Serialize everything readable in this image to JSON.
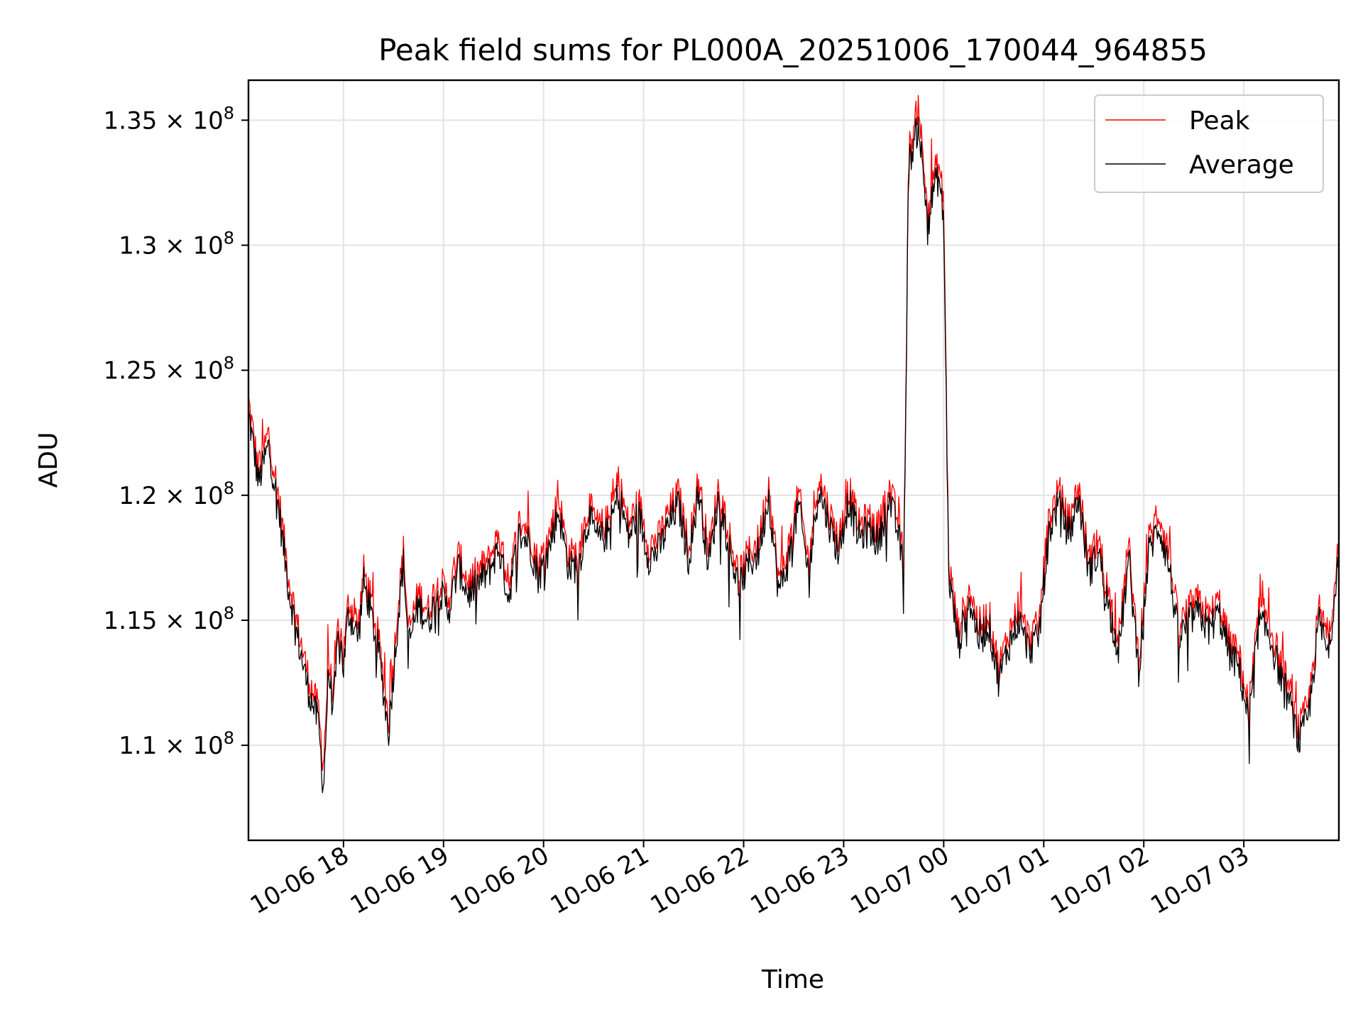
{
  "chart_data": {
    "type": "line",
    "title": "Peak field sums for PL000A_20251006_170044_964855",
    "xlabel": "Time",
    "ylabel": "ADU",
    "grid": true,
    "legend_position": "top-right",
    "xlim": [
      "2025-10-06 17:03",
      "2025-10-07 03:57"
    ],
    "ylim": [
      106200000,
      136600000
    ],
    "x_tick_labels": [
      "10-06 18",
      "10-06 19",
      "10-06 20",
      "10-06 21",
      "10-06 22",
      "10-06 23",
      "10-07 00",
      "10-07 01",
      "10-07 02",
      "10-07 03"
    ],
    "x_tick_hours": [
      0.95,
      1.95,
      2.95,
      3.95,
      4.95,
      5.95,
      6.95,
      7.95,
      8.95,
      9.95
    ],
    "y_ticks": [
      {
        "value": 110000000,
        "mantissa": "1.1"
      },
      {
        "value": 115000000,
        "mantissa": "1.15"
      },
      {
        "value": 120000000,
        "mantissa": "1.2"
      },
      {
        "value": 125000000,
        "mantissa": "1.25"
      },
      {
        "value": 130000000,
        "mantissa": "1.3"
      },
      {
        "value": 135000000,
        "mantissa": "1.35"
      }
    ],
    "y_tick_suffix": "× 10",
    "y_tick_exponent": "8",
    "x_unit": "hours since 2025-10-06 17:03",
    "series": [
      {
        "name": "Peak",
        "color": "#ff0000",
        "x": [
          0,
          0.1,
          0.2,
          0.3,
          0.4,
          0.5,
          0.6,
          0.7,
          0.75,
          0.8,
          0.85,
          0.9,
          0.95,
          1.0,
          1.1,
          1.15,
          1.2,
          1.3,
          1.4,
          1.5,
          1.55,
          1.6,
          1.7,
          1.8,
          1.9,
          2.0,
          2.1,
          2.2,
          2.3,
          2.4,
          2.5,
          2.6,
          2.7,
          2.8,
          2.9,
          3.0,
          3.1,
          3.2,
          3.3,
          3.4,
          3.5,
          3.6,
          3.7,
          3.8,
          3.9,
          4.0,
          4.1,
          4.2,
          4.3,
          4.4,
          4.5,
          4.6,
          4.7,
          4.8,
          4.9,
          5.0,
          5.1,
          5.2,
          5.3,
          5.4,
          5.5,
          5.6,
          5.7,
          5.8,
          5.9,
          6.0,
          6.1,
          6.2,
          6.3,
          6.4,
          6.5,
          6.55,
          6.6,
          6.65,
          6.7,
          6.75,
          6.8,
          6.85,
          6.9,
          6.95,
          7.0,
          7.1,
          7.2,
          7.3,
          7.4,
          7.5,
          7.6,
          7.7,
          7.8,
          7.9,
          8.0,
          8.1,
          8.2,
          8.3,
          8.4,
          8.5,
          8.6,
          8.7,
          8.8,
          8.9,
          9.0,
          9.1,
          9.2,
          9.3,
          9.4,
          9.5,
          9.6,
          9.7,
          9.8,
          9.9,
          10.0,
          10.1,
          10.2,
          10.3,
          10.4,
          10.5,
          10.6,
          10.7,
          10.8,
          10.9
        ],
        "values": [
          123800000,
          121000000,
          122500000,
          120000000,
          116800000,
          114600000,
          112700000,
          111400000,
          109200000,
          113500000,
          111800000,
          115200000,
          113600000,
          115800000,
          114800000,
          117000000,
          116200000,
          114300000,
          111000000,
          115800000,
          117800000,
          114500000,
          116100000,
          115400000,
          116700000,
          115900000,
          117600000,
          116500000,
          117000000,
          117400000,
          118400000,
          116400000,
          118900000,
          118700000,
          117200000,
          118300000,
          119900000,
          117600000,
          117700000,
          119600000,
          118700000,
          119000000,
          120600000,
          118800000,
          119800000,
          118000000,
          118300000,
          119300000,
          120100000,
          117900000,
          120700000,
          117700000,
          120400000,
          118600000,
          116800000,
          117700000,
          118200000,
          120500000,
          116600000,
          117900000,
          120100000,
          117300000,
          120800000,
          119400000,
          118200000,
          120300000,
          118800000,
          119100000,
          118600000,
          120400000,
          118900000,
          117400000,
          133800000,
          134500000,
          135800000,
          133000000,
          131500000,
          132800000,
          133200000,
          131800000,
          117300000,
          114500000,
          116400000,
          114800000,
          115300000,
          113100000,
          114500000,
          115500000,
          114300000,
          114800000,
          119000000,
          120200000,
          118900000,
          120400000,
          117400000,
          118200000,
          116000000,
          114300000,
          117900000,
          113500000,
          118200000,
          119300000,
          117700000,
          114700000,
          115500000,
          115800000,
          115100000,
          115800000,
          114200000,
          113600000,
          111500000,
          115400000,
          115000000,
          113500000,
          112300000,
          110600000,
          111700000,
          115500000,
          114000000,
          118600000
        ]
      },
      {
        "name": "Average",
        "color": "#000000",
        "x": [
          0,
          0.1,
          0.2,
          0.3,
          0.4,
          0.5,
          0.6,
          0.7,
          0.75,
          0.8,
          0.85,
          0.9,
          0.95,
          1.0,
          1.1,
          1.15,
          1.2,
          1.3,
          1.4,
          1.5,
          1.55,
          1.6,
          1.7,
          1.8,
          1.9,
          2.0,
          2.1,
          2.2,
          2.3,
          2.4,
          2.5,
          2.6,
          2.7,
          2.8,
          2.9,
          3.0,
          3.1,
          3.2,
          3.3,
          3.4,
          3.5,
          3.6,
          3.7,
          3.8,
          3.9,
          4.0,
          4.1,
          4.2,
          4.3,
          4.4,
          4.5,
          4.6,
          4.7,
          4.8,
          4.9,
          5.0,
          5.1,
          5.2,
          5.3,
          5.4,
          5.5,
          5.6,
          5.7,
          5.8,
          5.9,
          6.0,
          6.1,
          6.2,
          6.3,
          6.4,
          6.5,
          6.55,
          6.6,
          6.65,
          6.7,
          6.75,
          6.8,
          6.85,
          6.9,
          6.95,
          7.0,
          7.1,
          7.2,
          7.3,
          7.4,
          7.5,
          7.6,
          7.7,
          7.8,
          7.9,
          8.0,
          8.1,
          8.2,
          8.3,
          8.4,
          8.5,
          8.6,
          8.7,
          8.8,
          8.9,
          9.0,
          9.1,
          9.2,
          9.3,
          9.4,
          9.5,
          9.6,
          9.7,
          9.8,
          9.9,
          10.0,
          10.1,
          10.2,
          10.3,
          10.4,
          10.5,
          10.6,
          10.7,
          10.8,
          10.9
        ],
        "values": [
          123300000,
          120500000,
          122000000,
          119500000,
          116300000,
          114100000,
          112200000,
          110900000,
          108200000,
          113000000,
          111300000,
          114700000,
          113100000,
          115300000,
          114300000,
          116500000,
          115700000,
          113800000,
          110500000,
          115300000,
          117300000,
          114000000,
          115600000,
          114900000,
          116200000,
          115400000,
          117100000,
          116000000,
          116500000,
          116900000,
          117900000,
          115900000,
          118400000,
          118200000,
          116700000,
          117800000,
          119400000,
          117100000,
          117200000,
          119100000,
          118200000,
          118500000,
          120100000,
          118300000,
          119300000,
          117500000,
          117800000,
          118800000,
          119600000,
          117400000,
          120200000,
          117200000,
          119900000,
          118100000,
          116300000,
          117200000,
          117700000,
          120000000,
          116100000,
          117400000,
          119600000,
          116800000,
          120300000,
          118900000,
          117700000,
          119800000,
          118300000,
          118600000,
          118100000,
          119900000,
          118400000,
          116900000,
          133300000,
          134000000,
          134900000,
          132500000,
          131000000,
          132300000,
          132700000,
          131000000,
          116800000,
          114000000,
          115900000,
          114300000,
          114800000,
          112600000,
          114000000,
          115000000,
          113800000,
          114300000,
          118500000,
          119700000,
          118400000,
          119900000,
          116900000,
          117700000,
          115500000,
          113800000,
          117400000,
          113000000,
          117700000,
          118800000,
          117200000,
          114200000,
          115000000,
          115300000,
          114600000,
          115300000,
          113700000,
          113100000,
          111000000,
          114900000,
          114500000,
          113000000,
          111800000,
          110100000,
          111200000,
          115000000,
          113500000,
          118100000
        ]
      }
    ]
  }
}
